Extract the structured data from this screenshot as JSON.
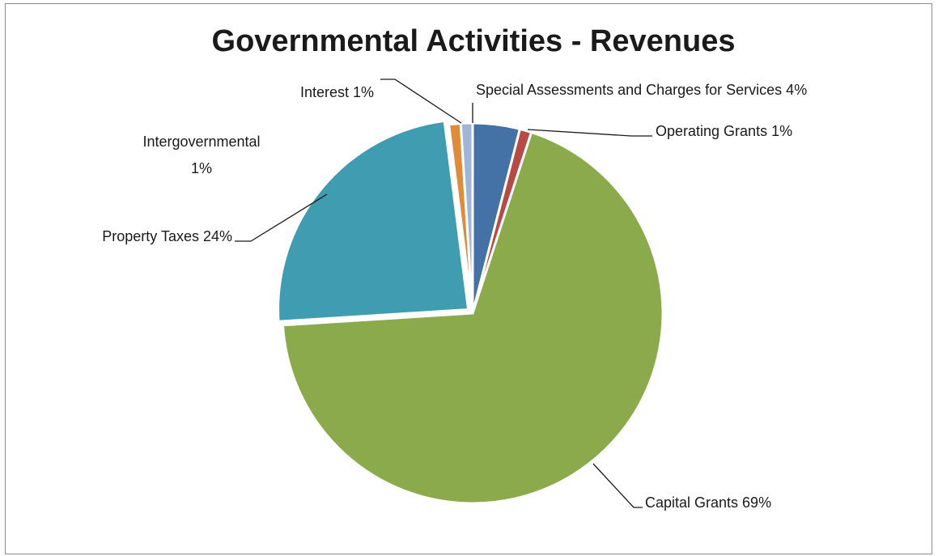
{
  "chart_data": {
    "type": "pie",
    "title": "Governmental Activities - Revenues",
    "slices": [
      {
        "label": "Special Assessments and Charges for Services",
        "value": 4,
        "pct_label": "4%",
        "color": "#4472a6"
      },
      {
        "label": "Operating Grants",
        "value": 1,
        "pct_label": "1%",
        "color": "#b84a45"
      },
      {
        "label": "Capital Grants",
        "value": 69,
        "pct_label": "69%",
        "color": "#8aaa4c"
      },
      {
        "label": "Property Taxes",
        "value": 24,
        "pct_label": "24%",
        "color": "#3f9cb1"
      },
      {
        "label": "Intergovernmental",
        "value": 1,
        "pct_label": "1%",
        "color": "#e08b3a"
      },
      {
        "label": "Interest",
        "value": 1,
        "pct_label": "1%",
        "color": "#9fb5d9"
      }
    ],
    "legend": "none",
    "data_labels": "outside with leader lines"
  }
}
